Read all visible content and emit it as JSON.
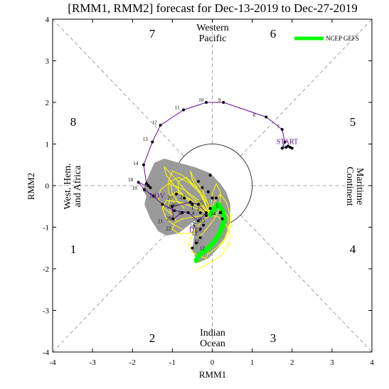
{
  "chart_data": {
    "type": "line",
    "title": "[RMM1, RMM2] forecast for Dec-13-2019 to Dec-27-2019",
    "xlabel": "RMM1",
    "ylabel": "RMM2",
    "xlim": [
      -4,
      4
    ],
    "ylim": [
      -4,
      4
    ],
    "x_ticks": [
      "-4",
      "-3",
      "-2",
      "-1",
      "0",
      "1",
      "2",
      "3",
      "4"
    ],
    "y_ticks": [
      "-4",
      "-3",
      "-2",
      "-1",
      "0",
      "1",
      "2",
      "3",
      "4"
    ],
    "unit_circle_radius": 1,
    "region_labels": {
      "top": [
        "Western",
        "Pacific"
      ],
      "bottom": [
        "Indian",
        "Ocean"
      ],
      "left": [
        "West. Hem.",
        "and Africa"
      ],
      "right": [
        "Maritime",
        "Continent"
      ]
    },
    "phase_numbers": [
      "1",
      "2",
      "3",
      "4",
      "5",
      "6",
      "7",
      "8"
    ],
    "legend": {
      "label": "NCEP GEFS",
      "color": "#00ff00",
      "placement": "top-right"
    },
    "colors": {
      "observed": "#5a0f8c",
      "ensemble_members": "#ffff00",
      "ensemble_mean": "#00ff00",
      "spread": "#9a9a9a",
      "annotations": "#5a0f8c"
    },
    "observed_series": {
      "name": "observed",
      "days": [
        "",
        "",
        "",
        "",
        "",
        "",
        "7",
        "8",
        "9",
        "10",
        "11",
        "12",
        "13",
        "14",
        "",
        "",
        "",
        "18",
        "19",
        "20",
        "21",
        "22",
        "23",
        "24",
        "25",
        "26",
        "27",
        "28",
        "29",
        "30"
      ],
      "x": [
        2.0,
        1.95,
        1.9,
        1.85,
        1.75,
        1.82,
        1.75,
        1.35,
        0.28,
        -0.15,
        -0.72,
        -1.3,
        -1.5,
        -1.72,
        -1.65,
        -1.6,
        -1.55,
        -1.85,
        -1.7,
        -1.48,
        -1.25,
        -0.95,
        -0.6,
        -0.35,
        -0.15,
        -0.35,
        -0.55,
        -1.0,
        -0.98,
        -0.75
      ],
      "y": [
        0.9,
        0.92,
        0.95,
        0.92,
        0.9,
        1.05,
        1.35,
        1.65,
        2.0,
        2.0,
        1.82,
        1.45,
        1.05,
        0.5,
        0.05,
        0.0,
        -0.05,
        0.08,
        -0.1,
        -0.25,
        -0.45,
        -0.6,
        -0.65,
        -0.85,
        -0.65,
        -0.45,
        -0.4,
        -0.5,
        -0.8,
        -0.65
      ]
    },
    "ensemble_mean_series": {
      "name": "NCEP GEFS",
      "x": [
        -0.05,
        0.05,
        0.15,
        0.25,
        0.3,
        0.25,
        0.15,
        0.05,
        -0.05,
        -0.15,
        -0.25,
        -0.35,
        -0.4
      ],
      "y": [
        -0.7,
        -0.55,
        -0.45,
        -0.6,
        -0.8,
        -1.0,
        -1.2,
        -1.35,
        -1.45,
        -1.55,
        -1.6,
        -1.7,
        -1.8
      ]
    },
    "forecast_markers": {
      "x": [
        -0.1,
        0.0,
        -0.05,
        -0.15,
        -0.22,
        -0.3,
        -0.3,
        -0.4,
        -0.5,
        -0.25,
        -0.35,
        -0.05,
        0.1,
        0.2,
        0.25,
        -0.9,
        -0.7,
        -0.5,
        -0.3
      ],
      "y": [
        -0.15,
        -0.3,
        -0.55,
        -0.72,
        -0.95,
        -1.05,
        -1.25,
        -1.38,
        -1.5,
        -0.05,
        0.1,
        0.25,
        -0.3,
        -0.65,
        -0.8,
        -0.2,
        -0.3,
        -0.45,
        -0.65
      ]
    },
    "ensemble_members": [
      {
        "x": [
          -0.05,
          -0.3,
          -0.6,
          -0.9,
          -1.05,
          -1.1,
          -1.05,
          -0.9
        ],
        "y": [
          -0.7,
          -0.5,
          -0.3,
          -0.15,
          -0.25,
          -0.45,
          -0.65,
          -0.85
        ]
      },
      {
        "x": [
          -0.05,
          -0.35,
          -0.7,
          -1.1,
          -1.3,
          -1.35,
          -1.2,
          -1.0
        ],
        "y": [
          -0.7,
          -0.35,
          -0.1,
          0.05,
          -0.1,
          -0.35,
          -0.55,
          -0.7
        ]
      },
      {
        "x": [
          -0.05,
          -0.25,
          -0.55,
          -0.85,
          -1.05,
          -1.0,
          -0.85,
          -0.7
        ],
        "y": [
          -0.7,
          -0.25,
          0.05,
          0.2,
          0.1,
          -0.2,
          -0.4,
          -0.55
        ]
      },
      {
        "x": [
          -0.05,
          -0.3,
          -0.5,
          -0.6,
          -0.5,
          -0.3,
          -0.15,
          -0.1
        ],
        "y": [
          -0.7,
          -0.9,
          -1.15,
          -1.4,
          -1.6,
          -1.7,
          -1.75,
          -1.6
        ]
      },
      {
        "x": [
          -0.05,
          -0.4,
          -0.8,
          -1.15,
          -1.25,
          -1.15,
          -0.95,
          -0.75
        ],
        "y": [
          -0.7,
          -0.55,
          -0.4,
          -0.35,
          -0.55,
          -0.8,
          -0.95,
          -1.05
        ]
      },
      {
        "x": [
          -0.05,
          0.05,
          0.2,
          0.35,
          0.45,
          0.45,
          0.35,
          0.2
        ],
        "y": [
          -0.7,
          -0.4,
          -0.2,
          -0.4,
          -0.7,
          -1.0,
          -1.25,
          -1.45
        ]
      },
      {
        "x": [
          -0.05,
          0.1,
          0.25,
          0.4,
          0.4,
          0.3,
          0.1,
          -0.1
        ],
        "y": [
          -0.7,
          -0.55,
          -0.55,
          -0.75,
          -1.05,
          -1.3,
          -1.5,
          -1.65
        ]
      },
      {
        "x": [
          -0.05,
          -0.1,
          -0.25,
          -0.45,
          -0.55,
          -0.5,
          -0.35,
          -0.25
        ],
        "y": [
          -0.7,
          -0.45,
          -0.1,
          0.15,
          0.35,
          0.15,
          -0.1,
          -0.3
        ]
      },
      {
        "x": [
          -0.05,
          -0.45,
          -0.75,
          -0.95,
          -1.0,
          -0.85,
          -0.55,
          -0.35
        ],
        "y": [
          -0.7,
          -0.75,
          -0.8,
          -0.9,
          -1.05,
          -1.15,
          -1.15,
          -1.05
        ]
      },
      {
        "x": [
          -0.05,
          0.0,
          0.1,
          0.2,
          0.2,
          0.05,
          -0.15,
          -0.35
        ],
        "y": [
          -0.7,
          -0.2,
          0.05,
          -0.15,
          -0.5,
          -0.8,
          -1.05,
          -1.25
        ]
      },
      {
        "x": [
          -0.05,
          -0.6,
          -0.95,
          -1.2,
          -1.15,
          -0.95,
          -0.75,
          -0.55
        ],
        "y": [
          -0.7,
          -0.2,
          0.2,
          0.45,
          0.25,
          0.0,
          -0.2,
          -0.35
        ]
      },
      {
        "x": [
          -0.05,
          0.15,
          0.35,
          0.45,
          0.4,
          0.2,
          -0.05,
          -0.35
        ],
        "y": [
          -0.7,
          -0.75,
          -0.95,
          -1.2,
          -1.45,
          -1.7,
          -1.85,
          -2.0
        ]
      },
      {
        "x": [
          -0.05,
          -0.55,
          -0.85,
          -0.85,
          -0.65,
          -0.45,
          -0.25,
          -0.15
        ],
        "y": [
          -0.7,
          -0.4,
          -0.15,
          0.1,
          0.2,
          0.0,
          -0.2,
          -0.4
        ]
      },
      {
        "x": [
          -0.05,
          -0.35,
          -0.75,
          -1.0,
          -1.1,
          -1.1,
          -1.0,
          -0.9
        ],
        "y": [
          -0.7,
          -0.1,
          0.25,
          0.35,
          0.1,
          -0.15,
          -0.35,
          -0.5
        ]
      }
    ],
    "spread_polygon": {
      "x": [
        -1.75,
        -1.45,
        -1.2,
        -0.85,
        -0.45,
        -0.05,
        0.2,
        0.35,
        0.45,
        0.45,
        0.35,
        0.15,
        -0.1,
        -0.35,
        -0.5,
        -0.45,
        -0.4,
        -0.45,
        -0.65,
        -0.85,
        -1.15,
        -1.35,
        -1.55,
        -1.7,
        -1.65
      ],
      "y": [
        -0.1,
        0.55,
        0.65,
        0.55,
        0.45,
        0.3,
        0.05,
        -0.15,
        -0.45,
        -0.85,
        -1.2,
        -1.5,
        -1.75,
        -1.85,
        -1.55,
        -1.15,
        -0.9,
        -0.85,
        -1.0,
        -1.15,
        -1.2,
        -1.1,
        -0.8,
        -0.45,
        -0.25
      ]
    },
    "point_labels": [
      {
        "text": "7",
        "x": 1.65,
        "y": 1.38
      },
      {
        "text": "8",
        "x": 1.05,
        "y": 1.66
      },
      {
        "text": "9",
        "x": 0.18,
        "y": 2.02
      },
      {
        "text": "10",
        "x": -0.28,
        "y": 2.02
      },
      {
        "text": "11",
        "x": -0.88,
        "y": 1.84
      },
      {
        "text": "12",
        "x": -1.45,
        "y": 1.48
      },
      {
        "text": "13",
        "x": -1.68,
        "y": 1.08
      },
      {
        "text": "14",
        "x": -1.92,
        "y": 0.5
      },
      {
        "text": "18",
        "x": -2.05,
        "y": 0.1
      },
      {
        "text": "19",
        "x": -1.95,
        "y": -0.1
      },
      {
        "text": "20",
        "x": -1.06,
        "y": -0.33
      },
      {
        "text": "21",
        "x": -1.3,
        "y": -0.9
      },
      {
        "text": "22",
        "x": -1.1,
        "y": -1.07
      },
      {
        "text": "23",
        "x": -0.25,
        "y": -0.88
      },
      {
        "text": "24",
        "x": 0.02,
        "y": -0.72
      },
      {
        "text": "25",
        "x": -0.28,
        "y": -0.45
      },
      {
        "text": "26",
        "x": -0.95,
        "y": -0.5
      },
      {
        "text": "27",
        "x": -0.75,
        "y": -0.32
      },
      {
        "text": "28",
        "x": -1.05,
        "y": -0.55
      },
      {
        "text": "29",
        "x": -1.08,
        "y": -0.83
      },
      {
        "text": "30",
        "x": -0.8,
        "y": -0.7
      },
      {
        "text": "1",
        "x": -0.5,
        "y": -0.58
      },
      {
        "text": "2",
        "x": -0.35,
        "y": -0.6
      },
      {
        "text": "3",
        "x": 0.22,
        "y": -0.68
      },
      {
        "text": "4",
        "x": -0.48,
        "y": -0.7
      },
      {
        "text": "5",
        "x": 0.12,
        "y": -0.52
      },
      {
        "text": "6",
        "x": -0.32,
        "y": -0.85
      },
      {
        "text": "7",
        "x": -0.45,
        "y": -1.05
      },
      {
        "text": "8",
        "x": -0.45,
        "y": -0.98
      },
      {
        "text": "9",
        "x": -0.4,
        "y": -1.1
      },
      {
        "text": "10",
        "x": -0.5,
        "y": -1.02
      },
      {
        "text": "11",
        "x": -0.38,
        "y": -1.38
      },
      {
        "text": "12",
        "x": -0.25,
        "y": -1.55
      },
      {
        "text": "13",
        "x": -0.45,
        "y": -1.2
      },
      {
        "text": "3",
        "x": 1.78,
        "y": 0.88
      }
    ],
    "annotations": [
      {
        "text": "START",
        "x": 1.88,
        "y": 1.0
      },
      {
        "text": "NOV",
        "x": -1.38,
        "y": -0.3
      },
      {
        "text": "DEC",
        "x": -0.4,
        "y": -1.12
      }
    ]
  }
}
